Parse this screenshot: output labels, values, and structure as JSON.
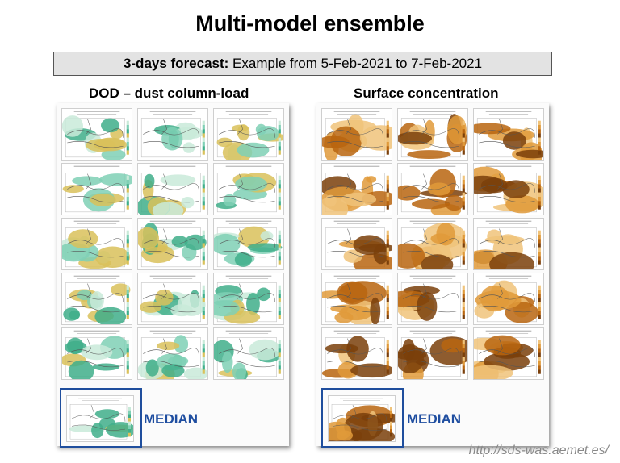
{
  "title": "Multi-model ensemble",
  "banner": {
    "bold": "3-days forecast:",
    "rest": " Example from 5-Feb-2021 to 7-Feb-2021"
  },
  "panels": {
    "left": {
      "heading": "DOD – dust column-load",
      "median_label": "MEDIAN",
      "palette": [
        "#c9ead9",
        "#7fd0b5",
        "#3fae8a",
        "#d9c15a"
      ]
    },
    "right": {
      "heading": "Surface concentration",
      "median_label": "MEDIAN",
      "palette": [
        "#f0c37a",
        "#e09a3a",
        "#b8650f",
        "#7a3f0a"
      ]
    }
  },
  "footer_url": "http://sds-was.aemet.es/",
  "colors": {
    "median_frame": "#1f4e9d",
    "banner_bg": "#e3e3e3"
  }
}
